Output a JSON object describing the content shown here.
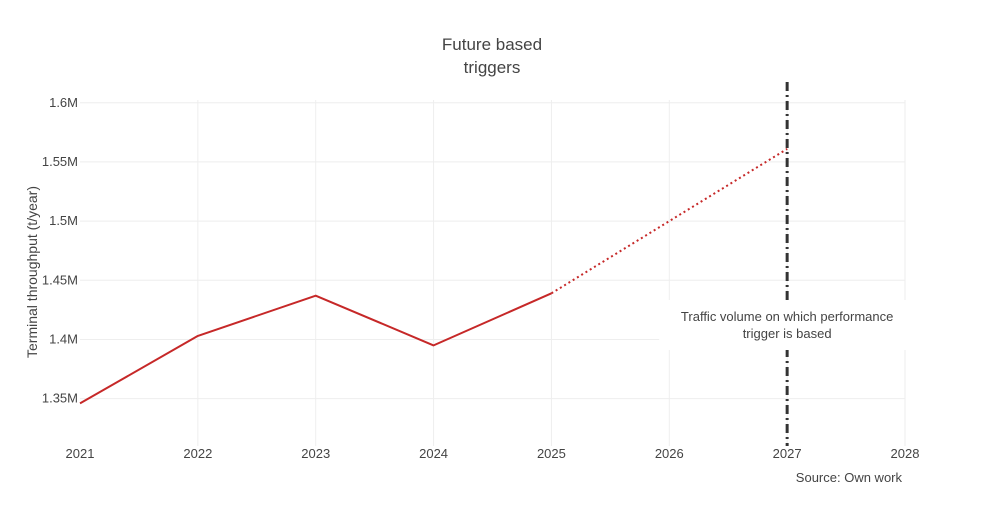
{
  "chart_data": {
    "type": "line",
    "title_lines": [
      "Future based",
      "triggers"
    ],
    "ylabel": "Terminal throughput (t/year)",
    "xlabel": "",
    "xlim": [
      2021,
      2028
    ],
    "ylim": [
      1310000,
      1615000
    ],
    "x_ticks": [
      2021,
      2022,
      2023,
      2024,
      2025,
      2026,
      2027,
      2028
    ],
    "y_ticks": [
      {
        "value": 1350000,
        "label": "1.35M"
      },
      {
        "value": 1400000,
        "label": "1.4M"
      },
      {
        "value": 1450000,
        "label": "1.45M"
      },
      {
        "value": 1500000,
        "label": "1.5M"
      },
      {
        "value": 1550000,
        "label": "1.55M"
      },
      {
        "value": 1600000,
        "label": "1.6M"
      }
    ],
    "grid": true,
    "series": [
      {
        "style": "solid",
        "color": "#c62828",
        "x": [
          2021,
          2022,
          2023,
          2024,
          2025
        ],
        "y": [
          1346000,
          1403000,
          1437000,
          1395000,
          1439000
        ]
      },
      {
        "style": "dotted",
        "color": "#c62828",
        "x": [
          2025,
          2027
        ],
        "y": [
          1439000,
          1561000
        ]
      }
    ],
    "vertical_line": {
      "x": 2027,
      "style": "dashdot",
      "color": "#333333"
    },
    "annotation": {
      "x": 2027,
      "lines": [
        "Traffic volume on which performance",
        "trigger is based"
      ]
    },
    "source_note": "Source: Own work"
  }
}
